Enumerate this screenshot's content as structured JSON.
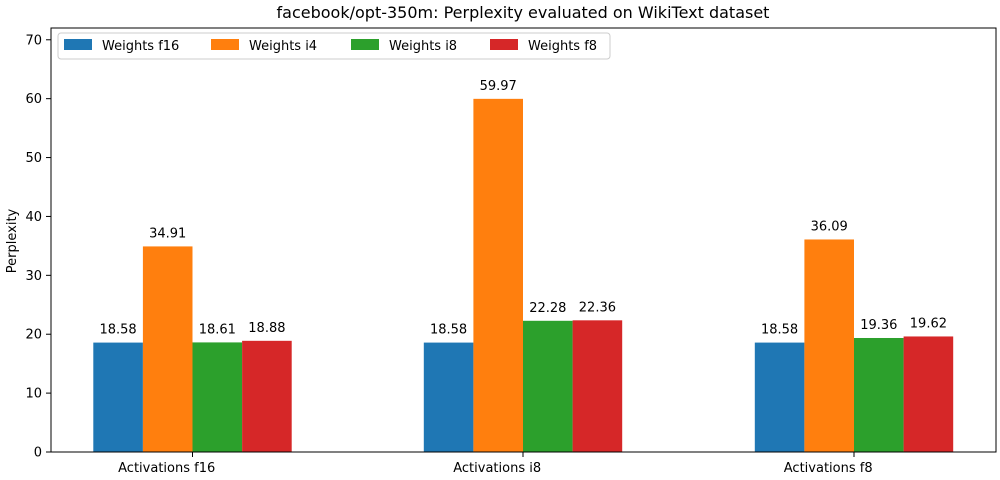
{
  "chart_data": {
    "type": "bar",
    "title": "facebook/opt-350m: Perplexity evaluated on WikiText dataset",
    "xlabel": "",
    "ylabel": "Perplexity",
    "ylim": [
      0,
      72
    ],
    "yticks": [
      0,
      10,
      20,
      30,
      40,
      50,
      60,
      70
    ],
    "categories": [
      "Activations f16",
      "Activations i8",
      "Activations f8"
    ],
    "series": [
      {
        "name": "Weights f16",
        "color": "#1f77b4",
        "values": [
          18.58,
          18.58,
          18.58
        ]
      },
      {
        "name": "Weights i4",
        "color": "#ff7f0e",
        "values": [
          34.91,
          59.97,
          36.09
        ]
      },
      {
        "name": "Weights i8",
        "color": "#2ca02c",
        "values": [
          18.61,
          22.28,
          19.36
        ]
      },
      {
        "name": "Weights f8",
        "color": "#d62728",
        "values": [
          18.88,
          22.36,
          19.62
        ]
      }
    ],
    "value_labels": [
      [
        "18.58",
        "18.58",
        "18.58"
      ],
      [
        "34.91",
        "59.97",
        "36.09"
      ],
      [
        "18.61",
        "22.28",
        "19.36"
      ],
      [
        "18.88",
        "22.36",
        "19.62"
      ]
    ],
    "legend": {
      "placement": "top-left",
      "orientation": "horizontal"
    },
    "grid": false
  }
}
